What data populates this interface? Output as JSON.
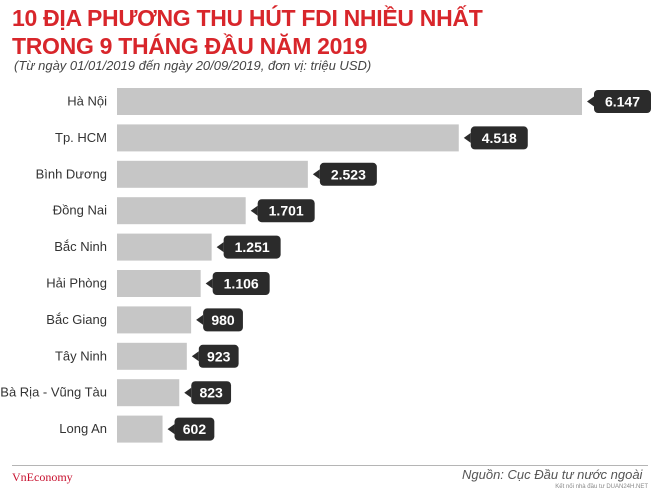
{
  "header": {
    "title_line1": "10 ĐỊA PHƯƠNG THU HÚT FDI NHIỀU NHẤT",
    "title_line2": "TRONG 9 THÁNG ĐẦU NĂM 2019",
    "subtitle": "(Từ ngày 01/01/2019 đến ngày 20/09/2019, đơn vị: triệu USD)"
  },
  "footer": {
    "brand": "VnEconomy",
    "source": "Nguồn: Cục Đầu tư nước ngoài",
    "watermark": "Kết nối nhà đầu tư DUAN24H.NET"
  },
  "colors": {
    "title": "#d8262b",
    "bar": "#c6c6c6",
    "label_bg": "#2b2b2b",
    "label_text": "#ffffff"
  },
  "chart_data": {
    "type": "bar",
    "orientation": "horizontal",
    "title": "10 ĐỊA PHƯƠNG THU HÚT FDI NHIỀU NHẤT TRONG 9 THÁNG ĐẦU NĂM 2019",
    "subtitle": "(Từ ngày 01/01/2019 đến ngày 20/09/2019, đơn vị: triệu USD)",
    "categories": [
      "Hà Nội",
      "Tp. HCM",
      "Bình Dương",
      "Đồng Nai",
      "Bắc Ninh",
      "Hải Phòng",
      "Bắc Giang",
      "Tây Ninh",
      "Bà Rịa - Vũng Tàu",
      "Long An"
    ],
    "values": [
      6147,
      4518,
      2523,
      1701,
      1251,
      1106,
      980,
      923,
      823,
      602
    ],
    "value_labels": [
      "6.147",
      "4.518",
      "2.523",
      "1.701",
      "1.251",
      "1.106",
      "980",
      "923",
      "823",
      "602"
    ],
    "xlim": [
      0,
      6147
    ],
    "grid": false,
    "legend": "none"
  }
}
